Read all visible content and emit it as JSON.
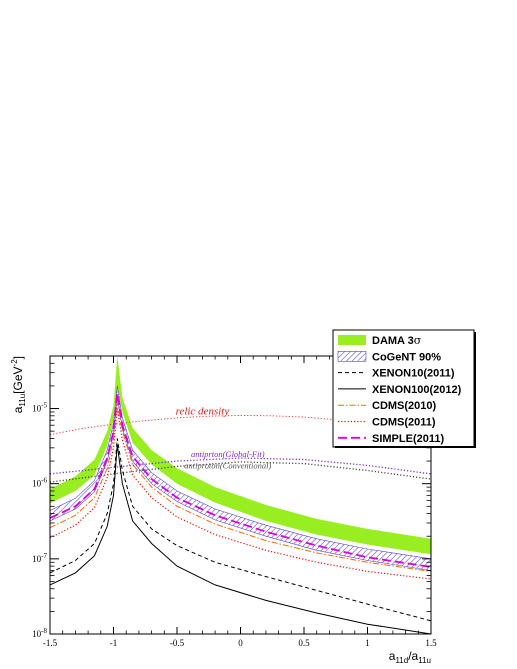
{
  "chart_data": {
    "type": "line",
    "xlabel": "a11d/a11u",
    "xlabel_main": "a",
    "xlabel_sub1": "11d",
    "xlabel_sep": "/a",
    "xlabel_sub2": "11u",
    "ylabel": "a11u[GeV-2]",
    "ylabel_main": "a",
    "ylabel_sub": "11u",
    "ylabel_unit": "[GeV",
    "ylabel_exp": "-2",
    "ylabel_close": "]",
    "xlim": [
      -1.5,
      1.5
    ],
    "ylim": [
      1e-08,
      5e-05
    ],
    "yscale": "log",
    "xticks": [
      "-1.5",
      "-1",
      "-0.5",
      "0",
      "0.5",
      "1",
      "1.5"
    ],
    "xtick_values": [
      -1.5,
      -1,
      -0.5,
      0,
      0.5,
      1,
      1.5
    ],
    "yticks": [
      {
        "value": 1e-08,
        "base": "10",
        "exp": "-8"
      },
      {
        "value": 1e-07,
        "base": "10",
        "exp": "-7"
      },
      {
        "value": 1e-06,
        "base": "10",
        "exp": "-6"
      },
      {
        "value": 1e-05,
        "base": "10",
        "exp": "-5"
      }
    ],
    "legend": [
      {
        "label": "DAMA 3",
        "symbol": "σ",
        "style": "band-green"
      },
      {
        "label": "CoGeNT 90%",
        "style": "band-hatch"
      },
      {
        "label": "XENON10(2011)",
        "style": "dashed-black"
      },
      {
        "label": "XENON100(2012)",
        "style": "solid-black"
      },
      {
        "label": "CDMS(2010)",
        "style": "dashdot-orange"
      },
      {
        "label": "CDMS(2011)",
        "style": "dotted-red"
      },
      {
        "label": "SIMPLE(2011)",
        "style": "longdash-magenta"
      }
    ],
    "annotations": [
      {
        "text": "relic density",
        "color": "#e02020",
        "x": -0.3,
        "y": 8.3e-06
      },
      {
        "text": "antiprton(Global-Fit)",
        "color": "#7a2ad0",
        "x": -0.1,
        "y": 2.25e-06
      },
      {
        "text": "antiproton(Conventional)",
        "color": "#555555",
        "x": -0.1,
        "y": 1.6e-06
      }
    ],
    "series": [
      {
        "name": "relic density",
        "style": "dotted",
        "color": "#ff3333",
        "width": 1,
        "x": [
          -1.5,
          -1.25,
          -1.0,
          -0.75,
          -0.5,
          -0.25,
          0,
          0.25,
          0.5,
          0.75,
          1.0,
          1.25,
          1.5
        ],
        "y": [
          4.5e-06,
          5.4e-06,
          6.2e-06,
          6.9e-06,
          7.5e-06,
          7.9e-06,
          8.1e-06,
          8e-06,
          7.7e-06,
          7.1e-06,
          6.3e-06,
          5.4e-06,
          4.4e-06
        ]
      },
      {
        "name": "antiprton(Global-Fit)",
        "style": "dotted",
        "color": "#7a2ad0",
        "width": 1.3,
        "x": [
          -1.5,
          -1.0,
          -0.5,
          0,
          0.5,
          1.0,
          1.5
        ],
        "y": [
          1.35e-06,
          1.65e-06,
          2e-06,
          2.2e-06,
          2.1e-06,
          1.75e-06,
          1.35e-06
        ]
      },
      {
        "name": "antiproton(Conventional)",
        "style": "dotted",
        "color": "#444444",
        "width": 1.3,
        "x": [
          -1.5,
          -1.0,
          -0.5,
          0,
          0.5,
          1.0,
          1.5
        ],
        "y": [
          1.05e-06,
          1.35e-06,
          1.7e-06,
          1.95e-06,
          1.85e-06,
          1.5e-06,
          1.15e-06
        ]
      },
      {
        "name": "XENON10(2011)",
        "style": "dashed",
        "color": "#000000",
        "width": 1,
        "x": [
          -1.5,
          -1.3,
          -1.15,
          -1.05,
          -1.0,
          -0.97,
          -0.93,
          -0.85,
          -0.7,
          -0.5,
          -0.2,
          0.2,
          0.6,
          1.0,
          1.5
        ],
        "y": [
          6.5e-08,
          9.5e-08,
          1.6e-07,
          4e-07,
          1e-06,
          4e-06,
          1.5e-06,
          5e-07,
          2.5e-07,
          1.5e-07,
          9e-08,
          5.8e-08,
          3.8e-08,
          2.5e-08,
          1.5e-08
        ]
      },
      {
        "name": "XENON100(2012)",
        "style": "solid",
        "color": "#000000",
        "width": 1,
        "x": [
          -1.5,
          -1.3,
          -1.15,
          -1.05,
          -1.0,
          -0.97,
          -0.93,
          -0.85,
          -0.7,
          -0.5,
          -0.2,
          0.2,
          0.6,
          1.0,
          1.5
        ],
        "y": [
          4.5e-08,
          6.5e-08,
          1.1e-07,
          2.7e-07,
          7e-07,
          3.3e-06,
          1e-06,
          3.2e-07,
          1.6e-07,
          8e-08,
          4.5e-08,
          2.8e-08,
          1.9e-08,
          1.35e-08,
          1e-08
        ]
      },
      {
        "name": "CDMS(2010)",
        "style": "dashdot",
        "color": "#ff6600",
        "width": 1,
        "x": [
          -1.5,
          -1.3,
          -1.15,
          -1.05,
          -1.0,
          -0.97,
          -0.93,
          -0.85,
          -0.7,
          -0.5,
          -0.2,
          0.2,
          0.6,
          1.0,
          1.5
        ],
        "y": [
          2.6e-07,
          3.8e-07,
          6.5e-07,
          1.6e-06,
          4e-06,
          1.2e-05,
          5e-06,
          1.8e-06,
          9e-07,
          5e-07,
          2.9e-07,
          1.75e-07,
          1.2e-07,
          9e-08,
          6.8e-08
        ]
      },
      {
        "name": "CDMS(2011)",
        "style": "dotted",
        "color": "#ee1100",
        "width": 1.2,
        "x": [
          -1.5,
          -1.3,
          -1.15,
          -1.05,
          -1.0,
          -0.97,
          -0.93,
          -0.85,
          -0.7,
          -0.5,
          -0.2,
          0.2,
          0.6,
          1.0,
          1.5
        ],
        "y": [
          1.9e-07,
          2.8e-07,
          4.8e-07,
          1.2e-06,
          3e-06,
          1e-05,
          3.8e-06,
          1.3e-06,
          6.5e-07,
          3.6e-07,
          2.1e-07,
          1.3e-07,
          9e-08,
          6.8e-08,
          5.4e-08
        ]
      },
      {
        "name": "SIMPLE(2011)",
        "style": "longdash",
        "color": "#dd00dd",
        "width": 1.8,
        "x": [
          -1.5,
          -1.3,
          -1.15,
          -1.05,
          -1.0,
          -0.97,
          -0.93,
          -0.85,
          -0.7,
          -0.5,
          -0.2,
          0.2,
          0.6,
          1.0,
          1.5
        ],
        "y": [
          3.5e-07,
          5e-07,
          8.5e-07,
          2.2e-06,
          5e-06,
          1.6e-05,
          6e-06,
          2.3e-06,
          1.15e-06,
          6.5e-07,
          3.8e-07,
          2.3e-07,
          1.5e-07,
          1.05e-07,
          7.8e-08
        ]
      }
    ],
    "bands": [
      {
        "name": "DAMA 3σ",
        "style": "fill",
        "color": "#99ee22",
        "x": [
          -1.5,
          -1.3,
          -1.15,
          -1.05,
          -1.0,
          -0.97,
          -0.93,
          -0.85,
          -0.7,
          -0.5,
          -0.2,
          0.2,
          0.6,
          1.0,
          1.5
        ],
        "low": [
          5.5e-07,
          8e-07,
          1.3e-06,
          3.2e-06,
          7e-06,
          2e-05,
          9e-06,
          3.5e-06,
          1.8e-06,
          1e-06,
          5.6e-07,
          3.2e-07,
          2.1e-07,
          1.55e-07,
          1.15e-07
        ],
        "high": [
          8.5e-07,
          1.25e-06,
          2.1e-06,
          5e-06,
          1.1e-05,
          5e-05,
          1.4e-05,
          5.5e-06,
          2.8e-06,
          1.6e-06,
          9e-07,
          5.2e-07,
          3.4e-07,
          2.5e-07,
          1.85e-07
        ]
      },
      {
        "name": "CoGeNT 90%",
        "style": "hatch",
        "color": "#5544cc",
        "x": [
          -1.5,
          -1.3,
          -1.15,
          -1.05,
          -1.0,
          -0.97,
          -0.93,
          -0.85,
          -0.7,
          -0.5,
          -0.2,
          0.2,
          0.6,
          1.0,
          1.5
        ],
        "low": [
          3.2e-07,
          4.6e-07,
          7.8e-07,
          2e-06,
          4.6e-06,
          1.45e-05,
          5.4e-06,
          2e-06,
          1e-06,
          5.8e-07,
          3.3e-07,
          2e-07,
          1.3e-07,
          9.5e-08,
          7e-08
        ],
        "high": [
          4.4e-07,
          6.4e-07,
          1.1e-06,
          2.8e-06,
          6.4e-06,
          2e-05,
          7.5e-06,
          2.8e-06,
          1.4e-06,
          8e-07,
          4.6e-07,
          2.8e-07,
          1.85e-07,
          1.35e-07,
          1e-07
        ]
      }
    ]
  }
}
